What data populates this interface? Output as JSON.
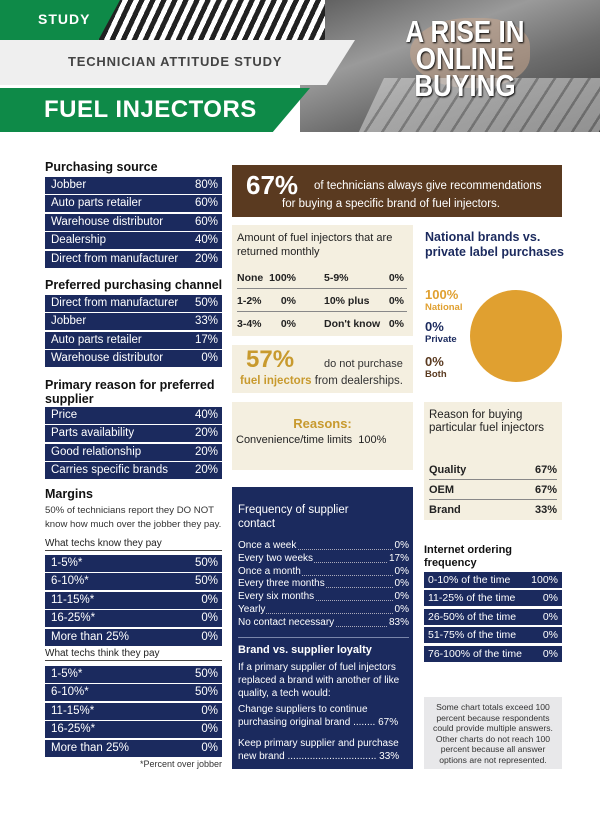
{
  "header": {
    "tag": "STUDY",
    "subtitle": "TECHNICIAN ATTITUDE STUDY",
    "title": "FUEL INJECTORS",
    "headline_1": "A RISE IN",
    "headline_2": "ONLINE",
    "headline_3": "BUYING"
  },
  "purchasing_source": {
    "title": "Purchasing source",
    "rows": [
      {
        "label": "Jobber",
        "value": "80%"
      },
      {
        "label": "Auto parts retailer",
        "value": "60%"
      },
      {
        "label": "Warehouse distributor",
        "value": "60%"
      },
      {
        "label": "Dealership",
        "value": "40%"
      },
      {
        "label": "Direct from manufacturer",
        "value": "20%"
      }
    ]
  },
  "preferred_channel": {
    "title": "Preferred purchasing channel",
    "rows": [
      {
        "label": "Direct from manufacturer",
        "value": "50%"
      },
      {
        "label": "Jobber",
        "value": "33%"
      },
      {
        "label": "Auto parts retailer",
        "value": "17%"
      },
      {
        "label": "Warehouse distributor",
        "value": "0%"
      }
    ]
  },
  "primary_reason": {
    "title_1": "Primary reason for preferred",
    "title_2": "supplier",
    "rows": [
      {
        "label": "Price",
        "value": "40%"
      },
      {
        "label": "Parts availability",
        "value": "20%"
      },
      {
        "label": "Good relationship",
        "value": "20%"
      },
      {
        "label": "Carries specific brands",
        "value": "20%"
      }
    ]
  },
  "margins": {
    "title": "Margins",
    "note_1": "50% of technicians report they DO NOT",
    "note_2": "know how much over the jobber they pay.",
    "know_label": "What techs know they pay",
    "know_rows": [
      {
        "label": "1-5%*",
        "value": "50%"
      },
      {
        "label": "6-10%*",
        "value": "50%"
      },
      {
        "label": "11-15%*",
        "value": "0%"
      },
      {
        "label": "16-25%*",
        "value": "0%"
      },
      {
        "label": "More than 25%",
        "value": "0%"
      }
    ],
    "think_label": "What techs think they pay",
    "think_rows": [
      {
        "label": "1-5%*",
        "value": "50%"
      },
      {
        "label": "6-10%*",
        "value": "50%"
      },
      {
        "label": "11-15%*",
        "value": "0%"
      },
      {
        "label": "16-25%*",
        "value": "0%"
      },
      {
        "label": "More than 25%",
        "value": "0%"
      }
    ],
    "footnote": "*Percent over jobber"
  },
  "recommendations": {
    "big": "67%",
    "line_1": "of technicians always give recommendations",
    "line_2": "for buying a specific brand of fuel injectors."
  },
  "returned": {
    "title": "Amount of fuel injectors that are returned monthly",
    "cells": [
      {
        "label": "None",
        "value": "100%"
      },
      {
        "label": "5-9%",
        "value": "0%"
      },
      {
        "label": "1-2%",
        "value": "0%"
      },
      {
        "label": "10% plus",
        "value": "0%"
      },
      {
        "label": "3-4%",
        "value": "0%"
      },
      {
        "label": "Don't know",
        "value": "0%"
      }
    ]
  },
  "no_dealership": {
    "big": "57%",
    "line_1": "do not purchase",
    "line_2_bold": "fuel injectors",
    "line_2_rest": "from dealerships."
  },
  "reasons": {
    "title": "Reasons:",
    "line": "Convenience/time limits",
    "value": "100%"
  },
  "national_brands": {
    "title": "National brands vs. private label purchases",
    "slices": [
      {
        "pct": "100%",
        "name": "National",
        "color": "#e0a030"
      },
      {
        "pct": "0%",
        "name": "Private",
        "color": "#1b2a5e"
      },
      {
        "pct": "0%",
        "name": "Both",
        "color": "#5a3a20"
      }
    ]
  },
  "reason_buying": {
    "title": "Reason for buying particular fuel injectors",
    "rows": [
      {
        "label": "Quality",
        "value": "67%"
      },
      {
        "label": "OEM",
        "value": "67%"
      },
      {
        "label": "Brand",
        "value": "33%"
      }
    ]
  },
  "frequency": {
    "title_1": "Frequency of supplier",
    "title_2": "contact",
    "rows": [
      {
        "label": "Once a week",
        "value": "0%"
      },
      {
        "label": "Every two weeks",
        "value": "17%"
      },
      {
        "label": "Once a month",
        "value": "0%"
      },
      {
        "label": "Every three months",
        "value": "0%"
      },
      {
        "label": "Every six months",
        "value": "0%"
      },
      {
        "label": "Yearly",
        "value": "0%"
      },
      {
        "label": "No contact necessary",
        "value": "83%"
      }
    ],
    "loyalty_title": "Brand vs. supplier loyalty",
    "loyalty_intro_1": "If a primary supplier of fuel injectors",
    "loyalty_intro_2": "replaced a brand with another of like",
    "loyalty_intro_3": "quality, a tech would:",
    "opt1_1": "Change suppliers to continue",
    "opt1_2": "purchasing original brand ........ 67%",
    "opt2_1": "Keep primary supplier and purchase",
    "opt2_2": "new brand ................................ 33%"
  },
  "internet_ordering": {
    "title_1": "Internet ordering",
    "title_2": "frequency",
    "rows": [
      {
        "label": "0-10% of the time",
        "value": "100%"
      },
      {
        "label": "11-25% of the time",
        "value": "0%"
      },
      {
        "label": "26-50% of the time",
        "value": "0%"
      },
      {
        "label": "51-75% of the time",
        "value": "0%"
      },
      {
        "label": "76-100% of the time",
        "value": "0%"
      }
    ]
  },
  "chart_totals_note": "Some chart totals exceed 100 percent because respondents could provide multiple answers. Other charts do not reach 100 percent because all answer options are not represented."
}
